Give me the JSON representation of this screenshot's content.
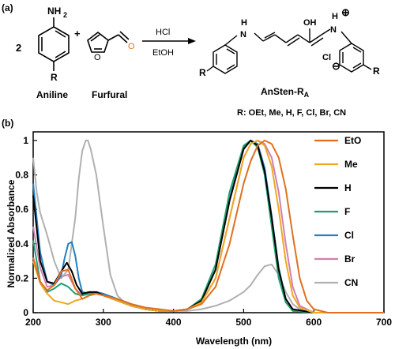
{
  "panel_a": {
    "label": "(a)",
    "coefficient": "2",
    "aniline_nh2": "NH",
    "aniline_nh2_sub": "2",
    "aniline_r": "R",
    "aniline_name": "Aniline",
    "plus": "+",
    "furfural_o_ring": "O",
    "furfural_o_ald": "O",
    "furfural_name": "Furfural",
    "reagent_top": "HCl",
    "reagent_bottom": "EtOH",
    "product_nh_left": "H",
    "product_n_left": "N",
    "product_oh": "OH",
    "product_nh_right": "H",
    "product_n_right": "N",
    "product_plus": "⊕",
    "product_cl": "Cl",
    "product_cl_minus": "⊖",
    "product_r_left": "R",
    "product_r_right": "R",
    "product_name": "AnSten-R",
    "product_name_sub": "A",
    "substituents": "R: OEt, Me, H, F, Cl, Br, CN"
  },
  "panel_b": {
    "label": "(b)"
  },
  "colors": {
    "EtO": "#e07020",
    "Me": "#f0a820",
    "H": "#000000",
    "F": "#20a070",
    "Cl": "#2080c0",
    "Br": "#d080b0",
    "CN": "#b0b0b0"
  },
  "chart_data": {
    "type": "line",
    "xlabel": "Wavelength (nm)",
    "ylabel": "Normalized Absorbance",
    "xlim": [
      200,
      700
    ],
    "ylim": [
      0,
      1.05
    ],
    "xticks": [
      200,
      300,
      400,
      500,
      600,
      700
    ],
    "yticks": [
      0,
      0.2,
      0.4,
      0.6,
      0.8,
      1
    ],
    "ytick_labels": [
      "0",
      "0.2",
      "0.4",
      "0.6",
      "0.8",
      "1"
    ],
    "grid": false,
    "legend_position": "right",
    "series": [
      {
        "name": "EtO",
        "x": [
          200,
          210,
          220,
          230,
          240,
          250,
          260,
          270,
          280,
          290,
          300,
          320,
          340,
          360,
          380,
          400,
          420,
          440,
          460,
          480,
          500,
          510,
          520,
          530,
          540,
          550,
          560,
          570,
          580,
          590,
          600,
          620,
          650,
          700
        ],
        "y": [
          0.32,
          0.18,
          0.13,
          0.16,
          0.24,
          0.25,
          0.14,
          0.08,
          0.1,
          0.11,
          0.1,
          0.08,
          0.05,
          0.03,
          0.02,
          0.01,
          0.02,
          0.05,
          0.15,
          0.4,
          0.75,
          0.88,
          0.97,
          1.0,
          0.98,
          0.9,
          0.72,
          0.45,
          0.2,
          0.07,
          0.02,
          0.0,
          0.0,
          0.0
        ]
      },
      {
        "name": "Me",
        "x": [
          200,
          210,
          220,
          230,
          240,
          250,
          260,
          270,
          280,
          290,
          300,
          320,
          340,
          360,
          380,
          400,
          420,
          440,
          460,
          480,
          500,
          510,
          520,
          530,
          540,
          550,
          560,
          570,
          580,
          600,
          650,
          700
        ],
        "y": [
          0.3,
          0.17,
          0.11,
          0.07,
          0.06,
          0.05,
          0.07,
          0.08,
          0.1,
          0.11,
          0.1,
          0.07,
          0.04,
          0.02,
          0.01,
          0.01,
          0.02,
          0.06,
          0.2,
          0.55,
          0.9,
          0.98,
          1.0,
          0.97,
          0.85,
          0.6,
          0.3,
          0.1,
          0.03,
          0.0,
          0.0,
          0.0
        ]
      },
      {
        "name": "H",
        "x": [
          200,
          210,
          220,
          230,
          240,
          248,
          255,
          262,
          270,
          280,
          290,
          300,
          320,
          340,
          360,
          380,
          400,
          420,
          440,
          460,
          480,
          500,
          510,
          520,
          530,
          540,
          550,
          560,
          570,
          600,
          650,
          700
        ],
        "y": [
          0.68,
          0.3,
          0.18,
          0.17,
          0.24,
          0.29,
          0.24,
          0.16,
          0.11,
          0.12,
          0.12,
          0.1,
          0.07,
          0.04,
          0.02,
          0.01,
          0.01,
          0.02,
          0.07,
          0.25,
          0.65,
          0.95,
          1.0,
          0.97,
          0.82,
          0.55,
          0.25,
          0.08,
          0.02,
          0.0,
          0.0,
          0.0
        ]
      },
      {
        "name": "F",
        "x": [
          200,
          210,
          220,
          230,
          240,
          250,
          260,
          270,
          280,
          290,
          300,
          320,
          340,
          360,
          380,
          400,
          420,
          440,
          460,
          480,
          500,
          510,
          520,
          530,
          540,
          550,
          560,
          570,
          600,
          650,
          700
        ],
        "y": [
          0.42,
          0.18,
          0.12,
          0.14,
          0.17,
          0.15,
          0.11,
          0.1,
          0.11,
          0.11,
          0.1,
          0.07,
          0.04,
          0.02,
          0.01,
          0.01,
          0.02,
          0.08,
          0.28,
          0.7,
          0.97,
          1.0,
          0.96,
          0.8,
          0.5,
          0.2,
          0.06,
          0.01,
          0.0,
          0.0,
          0.0
        ]
      },
      {
        "name": "Cl",
        "x": [
          200,
          210,
          220,
          230,
          240,
          245,
          250,
          255,
          260,
          265,
          270,
          280,
          290,
          300,
          320,
          340,
          360,
          380,
          400,
          420,
          440,
          460,
          480,
          500,
          510,
          520,
          530,
          540,
          550,
          560,
          570,
          600,
          650,
          700
        ],
        "y": [
          0.75,
          0.35,
          0.18,
          0.16,
          0.22,
          0.32,
          0.4,
          0.41,
          0.33,
          0.2,
          0.12,
          0.11,
          0.12,
          0.11,
          0.08,
          0.05,
          0.02,
          0.01,
          0.01,
          0.02,
          0.07,
          0.25,
          0.66,
          0.96,
          1.0,
          0.98,
          0.84,
          0.56,
          0.26,
          0.08,
          0.02,
          0.0,
          0.0,
          0.0
        ]
      },
      {
        "name": "Br",
        "x": [
          200,
          210,
          220,
          230,
          240,
          250,
          260,
          270,
          280,
          290,
          300,
          320,
          340,
          360,
          380,
          400,
          420,
          440,
          460,
          480,
          500,
          510,
          520,
          530,
          540,
          550,
          560,
          570,
          580,
          600,
          650,
          700
        ],
        "y": [
          0.5,
          0.26,
          0.15,
          0.16,
          0.21,
          0.22,
          0.14,
          0.1,
          0.12,
          0.12,
          0.11,
          0.08,
          0.04,
          0.02,
          0.01,
          0.01,
          0.02,
          0.06,
          0.2,
          0.55,
          0.9,
          0.98,
          1.0,
          0.98,
          0.9,
          0.7,
          0.4,
          0.15,
          0.04,
          0.0,
          0.0,
          0.0
        ]
      },
      {
        "name": "CN",
        "x": [
          200,
          205,
          210,
          220,
          230,
          240,
          250,
          260,
          265,
          270,
          275,
          278,
          282,
          290,
          300,
          310,
          320,
          330,
          340,
          360,
          380,
          400,
          420,
          440,
          460,
          480,
          500,
          510,
          520,
          530,
          540,
          550,
          560,
          570,
          580,
          600,
          650,
          700
        ],
        "y": [
          0.9,
          0.7,
          0.58,
          0.45,
          0.3,
          0.2,
          0.25,
          0.55,
          0.78,
          0.94,
          1.0,
          1.0,
          0.95,
          0.8,
          0.5,
          0.22,
          0.1,
          0.06,
          0.04,
          0.02,
          0.01,
          0.01,
          0.01,
          0.02,
          0.04,
          0.07,
          0.12,
          0.16,
          0.22,
          0.27,
          0.28,
          0.22,
          0.12,
          0.05,
          0.02,
          0.0,
          0.0,
          0.0
        ]
      }
    ]
  }
}
